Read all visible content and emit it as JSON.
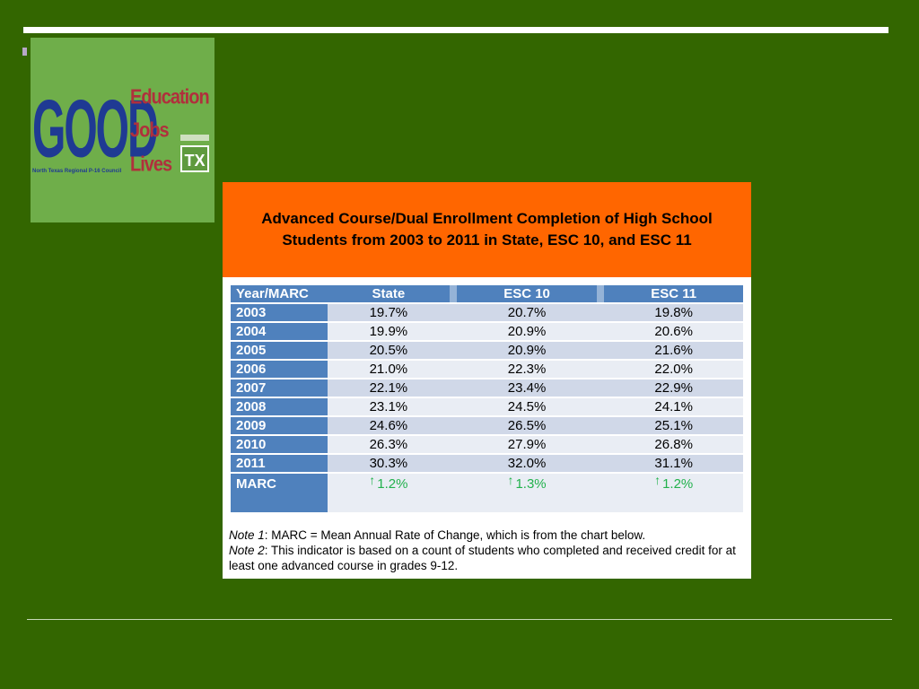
{
  "logo": {
    "main": "GOOD",
    "words": [
      "Education",
      "Jobs",
      "Lives"
    ],
    "badge": "TX",
    "tagline": "North Texas Regional P-16 Council"
  },
  "table": {
    "title_line1": "Advanced Course/Dual Enrollment Completion of High School",
    "title_line2": "Students from 2003 to 2011 in State, ESC 10, and ESC 11",
    "headers": [
      "Year/MARC",
      "State",
      "ESC 10",
      "ESC 11"
    ],
    "rows": [
      {
        "year": "2003",
        "state": "19.7%",
        "esc10": "20.7%",
        "esc11": "19.8%"
      },
      {
        "year": "2004",
        "state": "19.9%",
        "esc10": "20.9%",
        "esc11": "20.6%"
      },
      {
        "year": "2005",
        "state": "20.5%",
        "esc10": "20.9%",
        "esc11": "21.6%"
      },
      {
        "year": "2006",
        "state": "21.0%",
        "esc10": "22.3%",
        "esc11": "22.0%"
      },
      {
        "year": "2007",
        "state": "22.1%",
        "esc10": "23.4%",
        "esc11": "22.9%"
      },
      {
        "year": "2008",
        "state": "23.1%",
        "esc10": "24.5%",
        "esc11": "24.1%"
      },
      {
        "year": "2009",
        "state": "24.6%",
        "esc10": "26.5%",
        "esc11": "25.1%"
      },
      {
        "year": "2010",
        "state": "26.3%",
        "esc10": "27.9%",
        "esc11": "26.8%"
      },
      {
        "year": "2011",
        "state": "30.3%",
        "esc10": "32.0%",
        "esc11": "31.1%"
      }
    ],
    "marc": {
      "label": "MARC",
      "state": "1.2%",
      "esc10": "1.3%",
      "esc11": "1.2%",
      "arrow": "↑"
    }
  },
  "notes": {
    "note1_label": "Note 1",
    "note1_text": ": MARC  = Mean Annual Rate of Change, which is from the chart below.",
    "note2_label": "Note 2",
    "note2_text": ": This indicator is based on a count of students who completed and received credit for at least one advanced course in grades 9-12."
  },
  "colors": {
    "background": "#336600",
    "header_orange": "#ff6600",
    "table_blue": "#4f81bd",
    "marc_green": "#22b14c"
  }
}
